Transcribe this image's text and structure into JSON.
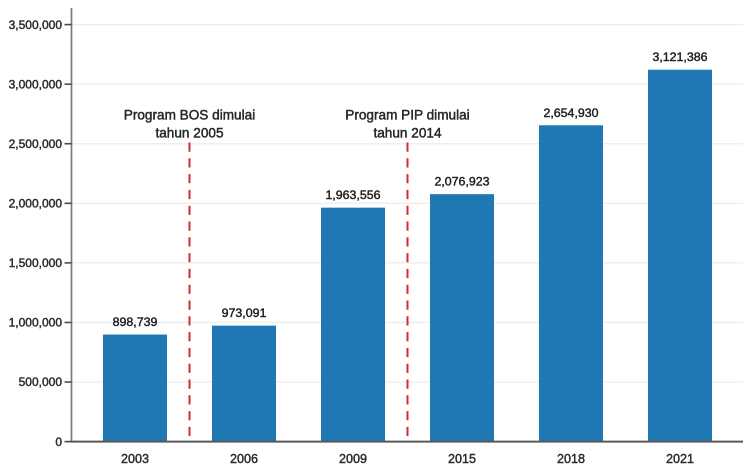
{
  "chart_data": {
    "type": "bar",
    "categories": [
      "2003",
      "2006",
      "2009",
      "2015",
      "2018",
      "2021"
    ],
    "values": [
      898739,
      973091,
      1963556,
      2076923,
      2654930,
      3121386
    ],
    "value_labels": [
      "898,739",
      "973,091",
      "1,963,556",
      "2,076,923",
      "2,654,930",
      "3,121,386"
    ],
    "title": "",
    "xlabel": "",
    "ylabel": "",
    "ylim": [
      0,
      3500000
    ],
    "y_tick_step": 500000,
    "y_ticks": [
      0,
      500000,
      1000000,
      1500000,
      2000000,
      2500000,
      3000000,
      3500000
    ],
    "y_tick_labels": [
      "0",
      "500,000",
      "1,000,000",
      "1,500,000",
      "2,000,000",
      "2,500,000",
      "3,000,000",
      "3,500,000"
    ],
    "grid": true,
    "legend": false,
    "annotations": [
      {
        "lines": [
          "Program BOS dimulai",
          "tahun 2005"
        ],
        "between_categories": [
          "2003",
          "2006"
        ],
        "line_style": "dashed"
      },
      {
        "lines": [
          "Program PIP dimulai",
          "tahun 2014"
        ],
        "between_categories": [
          "2009",
          "2015"
        ],
        "line_style": "dashed"
      }
    ]
  },
  "colors": {
    "background": "#ffffff",
    "bar": "#1F77B4",
    "annotation_line": "#D62B2B",
    "x_axis": "#595959",
    "y_axis": "#7a7a7a",
    "tick": "#4a4a4a",
    "grid": "#ececec",
    "tick_label": "#2b2b2b",
    "value_label": "#1f1f1f",
    "annotation_text": "#262626"
  }
}
